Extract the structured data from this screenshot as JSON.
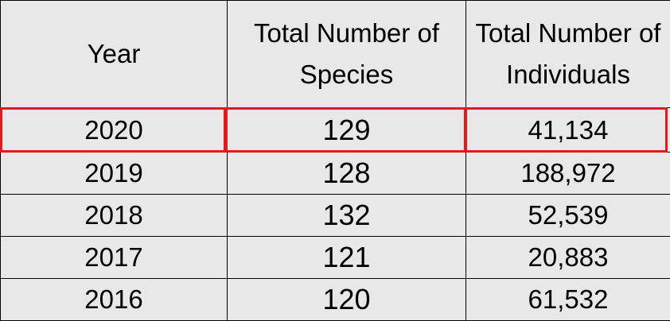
{
  "table": {
    "headers": {
      "year": "Year",
      "species": "Total Number of Species",
      "individuals": "Total Number of Individuals"
    },
    "rows": [
      {
        "year": "2020",
        "species": "129",
        "individuals": "41,134",
        "highlighted": true
      },
      {
        "year": "2019",
        "species": "128",
        "individuals": "188,972",
        "highlighted": false
      },
      {
        "year": "2018",
        "species": "132",
        "individuals": "52,539",
        "highlighted": false
      },
      {
        "year": "2017",
        "species": "121",
        "individuals": "20,883",
        "highlighted": false
      },
      {
        "year": "2016",
        "species": "120",
        "individuals": "61,532",
        "highlighted": false
      }
    ]
  },
  "colors": {
    "cell_background": "#e8e8e8",
    "grid_line": "#000000",
    "highlight_border": "#e11a1a"
  }
}
